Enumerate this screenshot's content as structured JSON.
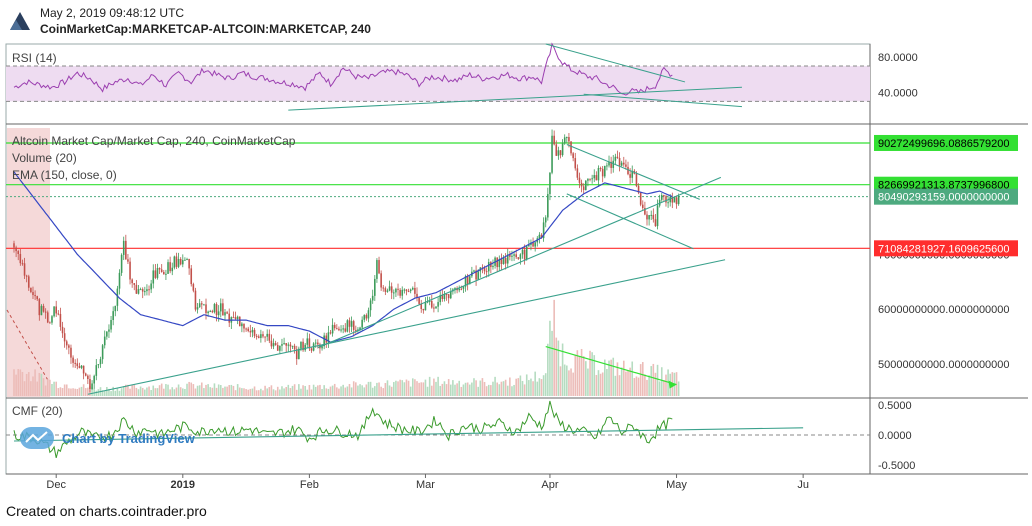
{
  "header": {
    "date": "May 2, 2019 09:48:12 UTC",
    "symbol": "CoinMarketCap:MARKETCAP-ALTCOIN:MARKETCAP, 240"
  },
  "footer": {
    "text": "Created on charts.cointrader.pro"
  },
  "watermark": "Chart by TradingView",
  "colors": {
    "up": "#3d9b5a",
    "down": "#c2504a",
    "rsi": "#9b3fb0",
    "rsi_band": "#eedcf1",
    "ema": "#3548c4",
    "cmf": "#3a9a2c",
    "trend": "#3aa18c",
    "green_level": "#33e033",
    "red_level": "#ff2d2d",
    "price_tag": "#4daa7f"
  },
  "chart_data": [
    {
      "id": "rsi",
      "type": "line",
      "title": "RSI (14)",
      "ylim": [
        10,
        95
      ],
      "band": [
        30,
        70
      ],
      "ticks": [
        {
          "v": 80,
          "label": "80.0000"
        },
        {
          "v": 40,
          "label": "40.0000"
        }
      ],
      "keypoints": [
        [
          0,
          46
        ],
        [
          6,
          52
        ],
        [
          10,
          50
        ],
        [
          18,
          46
        ],
        [
          24,
          52
        ],
        [
          30,
          62
        ],
        [
          36,
          56
        ],
        [
          42,
          44
        ],
        [
          48,
          52
        ],
        [
          54,
          56
        ],
        [
          60,
          48
        ],
        [
          66,
          60
        ],
        [
          72,
          48
        ],
        [
          78,
          62
        ],
        [
          84,
          52
        ],
        [
          90,
          66
        ],
        [
          96,
          60
        ],
        [
          102,
          56
        ],
        [
          108,
          62
        ],
        [
          114,
          58
        ],
        [
          120,
          56
        ],
        [
          126,
          52
        ],
        [
          132,
          50
        ],
        [
          138,
          46
        ],
        [
          145,
          62
        ],
        [
          150,
          50
        ],
        [
          156,
          68
        ],
        [
          162,
          58
        ],
        [
          168,
          56
        ],
        [
          174,
          62
        ],
        [
          180,
          64
        ],
        [
          186,
          60
        ],
        [
          192,
          50
        ],
        [
          198,
          58
        ],
        [
          204,
          56
        ],
        [
          210,
          54
        ],
        [
          216,
          60
        ],
        [
          222,
          56
        ],
        [
          228,
          58
        ],
        [
          234,
          60
        ],
        [
          240,
          56
        ],
        [
          246,
          58
        ],
        [
          250,
          52
        ],
        [
          255,
          92
        ],
        [
          260,
          74
        ],
        [
          264,
          66
        ],
        [
          268,
          62
        ],
        [
          272,
          58
        ],
        [
          276,
          56
        ],
        [
          280,
          50
        ],
        [
          284,
          46
        ],
        [
          288,
          38
        ],
        [
          292,
          42
        ],
        [
          296,
          40
        ],
        [
          300,
          44
        ],
        [
          304,
          48
        ],
        [
          308,
          66
        ],
        [
          312,
          60
        ]
      ],
      "trendlines": [
        {
          "from": [
            130,
            20
          ],
          "to": [
            345,
            46
          ]
        },
        {
          "from": [
            252,
            95
          ],
          "to": [
            318,
            52
          ]
        },
        {
          "from": [
            270,
            38
          ],
          "to": [
            345,
            24
          ]
        }
      ]
    },
    {
      "id": "price",
      "type": "candlestick",
      "title": "Altcoin Market Cap/Market Cap, 240, CoinMarketCap",
      "legend": [
        "Volume (20)",
        "EMA (150, close, 0)"
      ],
      "x_axis": [
        {
          "bar": 20,
          "label": "Dec",
          "bold": false
        },
        {
          "bar": 80,
          "label": "2019",
          "bold": true
        },
        {
          "bar": 140,
          "label": "Feb",
          "bold": false
        },
        {
          "bar": 195,
          "label": "Mar",
          "bold": false
        },
        {
          "bar": 254,
          "label": "Apr",
          "bold": false
        },
        {
          "bar": 314,
          "label": "May",
          "bold": false
        },
        {
          "bar": 374,
          "label": "Ju",
          "bold": false
        }
      ],
      "bars": 315,
      "ylim": [
        44000000000,
        93000000000
      ],
      "axis_ticks": [
        {
          "v": 70000000000,
          "label": "70000000000.0000000000"
        },
        {
          "v": 60000000000,
          "label": "60000000000.0000000000"
        },
        {
          "v": 50000000000,
          "label": "50000000000.0000000000"
        }
      ],
      "levels": [
        {
          "v": 90272499696.08865,
          "label": "90272499696.0886579200",
          "kind": "green"
        },
        {
          "v": 82669921313.8738,
          "label": "82669921313.8737996800",
          "kind": "green"
        },
        {
          "v": 71084281927.16096,
          "label": "71084281927.1609625600",
          "kind": "red"
        }
      ],
      "last_price": {
        "v": 80490293159,
        "label": "80490293159.0000000000"
      },
      "keypoints": [
        [
          0,
          72
        ],
        [
          6,
          66
        ],
        [
          12,
          60
        ],
        [
          16,
          58
        ],
        [
          20,
          60
        ],
        [
          26,
          52
        ],
        [
          32,
          49
        ],
        [
          36,
          46
        ],
        [
          40,
          50
        ],
        [
          44,
          56
        ],
        [
          48,
          61
        ],
        [
          52,
          72
        ],
        [
          55,
          66
        ],
        [
          58,
          63
        ],
        [
          62,
          63
        ],
        [
          66,
          66
        ],
        [
          70,
          67
        ],
        [
          74,
          68
        ],
        [
          78,
          69
        ],
        [
          82,
          69
        ],
        [
          86,
          61
        ],
        [
          90,
          60
        ],
        [
          94,
          60
        ],
        [
          98,
          60
        ],
        [
          102,
          58
        ],
        [
          106,
          58
        ],
        [
          110,
          57
        ],
        [
          114,
          56
        ],
        [
          118,
          55
        ],
        [
          122,
          54
        ],
        [
          126,
          53
        ],
        [
          130,
          53
        ],
        [
          134,
          52
        ],
        [
          138,
          54
        ],
        [
          142,
          53
        ],
        [
          146,
          54
        ],
        [
          150,
          56
        ],
        [
          154,
          57
        ],
        [
          158,
          57
        ],
        [
          162,
          57
        ],
        [
          166,
          58
        ],
        [
          170,
          62
        ],
        [
          172,
          68
        ],
        [
          174,
          63
        ],
        [
          178,
          64
        ],
        [
          182,
          63
        ],
        [
          186,
          64
        ],
        [
          190,
          63
        ],
        [
          194,
          60
        ],
        [
          198,
          61
        ],
        [
          202,
          62
        ],
        [
          206,
          63
        ],
        [
          210,
          64
        ],
        [
          214,
          65
        ],
        [
          218,
          66
        ],
        [
          222,
          67
        ],
        [
          226,
          68
        ],
        [
          230,
          69
        ],
        [
          234,
          69
        ],
        [
          238,
          70
        ],
        [
          242,
          70
        ],
        [
          246,
          72
        ],
        [
          249,
          73
        ],
        [
          252,
          76
        ],
        [
          254,
          84
        ],
        [
          255,
          91
        ],
        [
          258,
          88
        ],
        [
          261,
          91
        ],
        [
          264,
          89
        ],
        [
          266,
          86
        ],
        [
          270,
          82
        ],
        [
          274,
          84
        ],
        [
          278,
          85
        ],
        [
          282,
          86
        ],
        [
          286,
          87
        ],
        [
          290,
          86
        ],
        [
          294,
          84
        ],
        [
          296,
          81
        ],
        [
          300,
          77
        ],
        [
          304,
          76
        ],
        [
          306,
          80
        ],
        [
          312,
          80
        ]
      ],
      "ema_keypoints": [
        [
          0,
          85
        ],
        [
          10,
          80
        ],
        [
          20,
          75
        ],
        [
          30,
          70
        ],
        [
          40,
          66
        ],
        [
          50,
          62
        ],
        [
          60,
          59
        ],
        [
          70,
          58
        ],
        [
          80,
          57
        ],
        [
          90,
          59
        ],
        [
          100,
          58
        ],
        [
          110,
          58
        ],
        [
          120,
          57
        ],
        [
          130,
          57
        ],
        [
          140,
          56
        ],
        [
          150,
          54
        ],
        [
          160,
          55
        ],
        [
          170,
          57
        ],
        [
          180,
          60
        ],
        [
          190,
          62
        ],
        [
          200,
          63
        ],
        [
          210,
          65
        ],
        [
          220,
          67
        ],
        [
          230,
          69
        ],
        [
          240,
          71
        ],
        [
          250,
          73
        ],
        [
          260,
          78
        ],
        [
          270,
          81
        ],
        [
          280,
          83
        ],
        [
          290,
          82
        ],
        [
          300,
          81
        ],
        [
          306,
          81.5
        ],
        [
          312,
          80.5
        ]
      ],
      "trendlines": [
        {
          "from": [
            35,
            44.5
          ],
          "to": [
            337,
            69
          ]
        },
        {
          "from": [
            144,
            53
          ],
          "to": [
            335,
            84
          ]
        },
        {
          "from": [
            262,
            90
          ],
          "to": [
            325,
            80
          ]
        },
        {
          "from": [
            262,
            81
          ],
          "to": [
            322,
            71
          ]
        }
      ],
      "volume": {
        "ylim": [
          0,
          100
        ],
        "keypoints": [
          [
            0,
            30
          ],
          [
            20,
            14
          ],
          [
            40,
            8
          ],
          [
            60,
            10
          ],
          [
            80,
            12
          ],
          [
            100,
            10
          ],
          [
            120,
            9
          ],
          [
            140,
            10
          ],
          [
            160,
            12
          ],
          [
            180,
            14
          ],
          [
            200,
            16
          ],
          [
            220,
            15
          ],
          [
            240,
            17
          ],
          [
            252,
            24
          ],
          [
            255,
            90
          ],
          [
            258,
            55
          ],
          [
            262,
            42
          ],
          [
            270,
            38
          ],
          [
            280,
            34
          ],
          [
            290,
            30
          ],
          [
            300,
            28
          ],
          [
            312,
            22
          ]
        ],
        "trend": {
          "from": [
            252,
            52
          ],
          "to": [
            314,
            12
          ]
        }
      }
    },
    {
      "id": "cmf",
      "type": "line",
      "title": "CMF (20)",
      "ylim": [
        -0.65,
        0.6
      ],
      "ticks": [
        {
          "v": 0.5,
          "label": "0.5000"
        },
        {
          "v": 0.0,
          "label": "0.0000"
        },
        {
          "v": -0.5,
          "label": "-0.5000"
        }
      ],
      "keypoints": [
        [
          0,
          0.0
        ],
        [
          10,
          -0.05
        ],
        [
          20,
          -0.3
        ],
        [
          26,
          -0.1
        ],
        [
          32,
          0.05
        ],
        [
          38,
          -0.05
        ],
        [
          46,
          0.0
        ],
        [
          52,
          0.25
        ],
        [
          58,
          0.05
        ],
        [
          64,
          0.1
        ],
        [
          70,
          0.0
        ],
        [
          76,
          0.1
        ],
        [
          82,
          0.15
        ],
        [
          88,
          0.05
        ],
        [
          96,
          0.12
        ],
        [
          104,
          0.05
        ],
        [
          112,
          0.1
        ],
        [
          120,
          0.0
        ],
        [
          128,
          0.05
        ],
        [
          134,
          0.1
        ],
        [
          140,
          -0.05
        ],
        [
          148,
          0.1
        ],
        [
          156,
          0.05
        ],
        [
          164,
          0.0
        ],
        [
          170,
          0.45
        ],
        [
          176,
          0.2
        ],
        [
          184,
          0.1
        ],
        [
          192,
          0.05
        ],
        [
          200,
          0.25
        ],
        [
          206,
          0.0
        ],
        [
          214,
          0.15
        ],
        [
          222,
          0.1
        ],
        [
          230,
          0.2
        ],
        [
          238,
          0.05
        ],
        [
          244,
          0.3
        ],
        [
          250,
          0.15
        ],
        [
          254,
          0.5
        ],
        [
          258,
          0.2
        ],
        [
          264,
          0.1
        ],
        [
          270,
          0.05
        ],
        [
          276,
          -0.05
        ],
        [
          282,
          0.3
        ],
        [
          288,
          0.05
        ],
        [
          294,
          0.15
        ],
        [
          300,
          -0.1
        ],
        [
          306,
          0.1
        ],
        [
          312,
          0.25
        ]
      ],
      "trendline": {
        "from": [
          0,
          -0.1
        ],
        "to": [
          374,
          0.12
        ]
      }
    }
  ]
}
